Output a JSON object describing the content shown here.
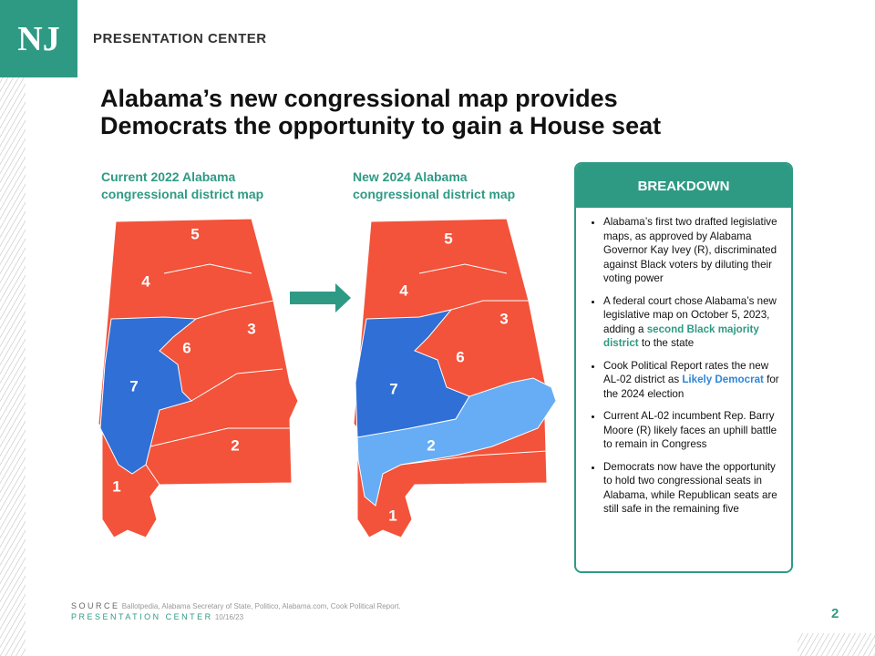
{
  "header": {
    "logo": "NJ",
    "title": "PRESENTATION CENTER"
  },
  "title": [
    "Alabama’s new congressional map provides",
    "Democrats the opportunity to gain a House seat"
  ],
  "maps": [
    {
      "caption": [
        "Current 2022 Alabama",
        "congressional district map"
      ],
      "districts": [
        "5",
        "4",
        "3",
        "6",
        "7",
        "2",
        "1"
      ]
    },
    {
      "caption": [
        "New 2024 Alabama",
        "congressional district map"
      ],
      "districts": [
        "5",
        "4",
        "3",
        "6",
        "7",
        "2",
        "1"
      ]
    }
  ],
  "breakdown": {
    "heading": "BREAKDOWN",
    "bullets": [
      [
        {
          "text": "Alabama’s first two drafted legislative maps, as approved by Alabama Governor Kay Ivey (R), discriminated against Black voters by diluting their voting power"
        }
      ],
      [
        {
          "text": "A federal court chose Alabama’s new legislative map on October 5, 2023, adding a "
        },
        {
          "text": "second Black majority district",
          "style": "green"
        },
        {
          "text": " to the state"
        }
      ],
      [
        {
          "text": "Cook Political Report rates the new AL-02 district as "
        },
        {
          "text": "Likely Democrat",
          "style": "blue"
        },
        {
          "text": " for the 2024 election"
        }
      ],
      [
        {
          "text": "Current AL-02 incumbent Rep. Barry Moore (R) likely faces an uphill battle to remain in Congress"
        }
      ],
      [
        {
          "text": "Democrats now have the opportunity to hold two congressional seats in Alabama, while Republican seats are still safe in the remaining five"
        }
      ]
    ]
  },
  "footer": {
    "source_label": "SOURCE",
    "source": "Ballotpedia, Alabama Secretary of State, Politico, Alabama.com, Cook Political Report.",
    "center": "PRESENTATION CENTER",
    "date": "10/16/23",
    "page": "2"
  }
}
